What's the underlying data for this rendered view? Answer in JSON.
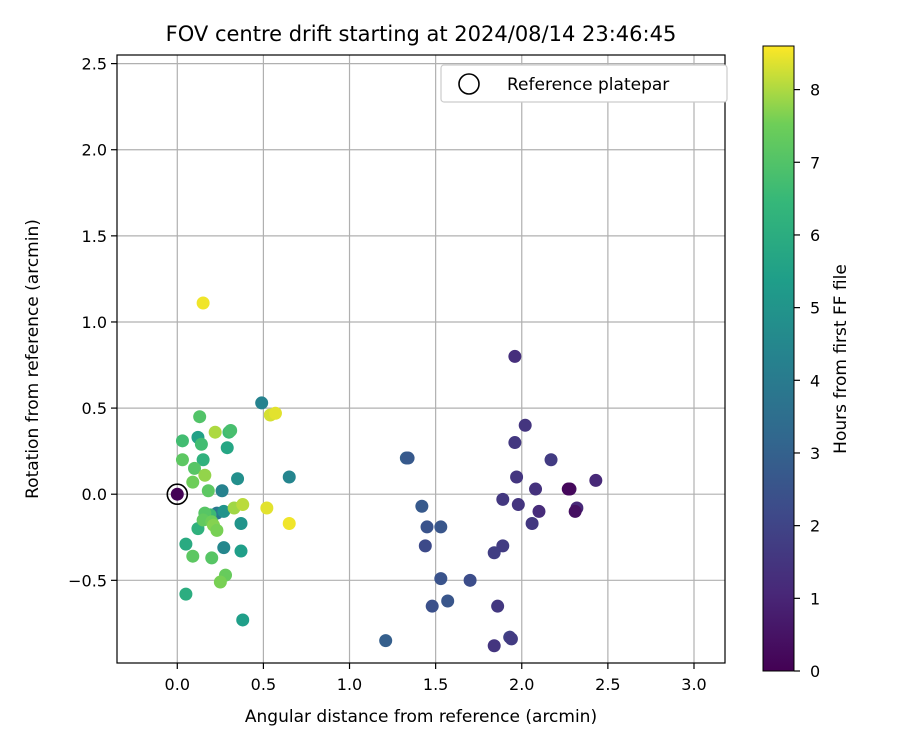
{
  "chart_data": {
    "type": "scatter",
    "title": "FOV centre drift starting at 2024/08/14 23:46:45",
    "xlabel": "Angular distance from reference (arcmin)",
    "ylabel": "Rotation from reference (arcmin)",
    "xlim": [
      -0.35,
      3.18
    ],
    "ylim": [
      -0.98,
      2.55
    ],
    "grid": true,
    "legend": {
      "position": "top-right",
      "entries": [
        {
          "label": "Reference platepar",
          "marker": "hollow-circle",
          "color": "#000000"
        }
      ]
    },
    "x_ticks": [
      0.0,
      0.5,
      1.0,
      1.5,
      2.0,
      2.5,
      3.0
    ],
    "x_tick_labels": [
      "0.0",
      "0.5",
      "1.0",
      "1.5",
      "2.0",
      "2.5",
      "3.0"
    ],
    "y_ticks": [
      -0.5,
      0.0,
      0.5,
      1.0,
      1.5,
      2.0,
      2.5
    ],
    "y_tick_labels": [
      "−0.5",
      "0.0",
      "0.5",
      "1.0",
      "1.5",
      "2.0",
      "2.5"
    ],
    "colorbar": {
      "label": "Hours from first FF file",
      "colormap": "viridis",
      "range": [
        0,
        8.6
      ],
      "ticks": [
        0,
        1,
        2,
        3,
        4,
        5,
        6,
        7,
        8
      ],
      "tick_labels": [
        "0",
        "1",
        "2",
        "3",
        "4",
        "5",
        "6",
        "7",
        "8"
      ]
    },
    "reference_point": {
      "x": 0.0,
      "y": 0.0
    },
    "series": [
      {
        "marker": "filled-circle",
        "color_by": "hours",
        "points": [
          {
            "x": 0.0,
            "y": 0.0,
            "c": 0.05
          },
          {
            "x": 1.96,
            "y": 0.8,
            "c": 1.3
          },
          {
            "x": 2.02,
            "y": 0.4,
            "c": 1.5
          },
          {
            "x": 1.96,
            "y": 0.3,
            "c": 1.6
          },
          {
            "x": 2.17,
            "y": 0.2,
            "c": 1.7
          },
          {
            "x": 1.97,
            "y": 0.1,
            "c": 1.5
          },
          {
            "x": 2.43,
            "y": 0.08,
            "c": 1.1
          },
          {
            "x": 2.28,
            "y": 0.03,
            "c": 0.3
          },
          {
            "x": 2.27,
            "y": 0.03,
            "c": 0.2
          },
          {
            "x": 2.08,
            "y": 0.03,
            "c": 1.4
          },
          {
            "x": 1.89,
            "y": -0.03,
            "c": 1.6
          },
          {
            "x": 1.98,
            "y": -0.06,
            "c": 1.5
          },
          {
            "x": 2.32,
            "y": -0.08,
            "c": 1.1
          },
          {
            "x": 2.31,
            "y": -0.1,
            "c": 0.4
          },
          {
            "x": 2.1,
            "y": -0.1,
            "c": 1.2
          },
          {
            "x": 2.06,
            "y": -0.17,
            "c": 1.6
          },
          {
            "x": 1.89,
            "y": -0.3,
            "c": 1.7
          },
          {
            "x": 1.84,
            "y": -0.34,
            "c": 1.8
          },
          {
            "x": 1.86,
            "y": -0.65,
            "c": 1.6
          },
          {
            "x": 1.93,
            "y": -0.83,
            "c": 1.9
          },
          {
            "x": 1.94,
            "y": -0.84,
            "c": 1.7
          },
          {
            "x": 1.84,
            "y": -0.88,
            "c": 1.5
          },
          {
            "x": 1.7,
            "y": -0.5,
            "c": 2.3
          },
          {
            "x": 1.57,
            "y": -0.62,
            "c": 2.6
          },
          {
            "x": 1.53,
            "y": -0.49,
            "c": 2.5
          },
          {
            "x": 1.48,
            "y": -0.65,
            "c": 2.4
          },
          {
            "x": 1.44,
            "y": -0.3,
            "c": 2.2
          },
          {
            "x": 1.45,
            "y": -0.19,
            "c": 2.5
          },
          {
            "x": 1.53,
            "y": -0.19,
            "c": 2.6
          },
          {
            "x": 1.42,
            "y": -0.07,
            "c": 2.7
          },
          {
            "x": 1.33,
            "y": 0.21,
            "c": 2.9
          },
          {
            "x": 1.34,
            "y": 0.21,
            "c": 2.7
          },
          {
            "x": 1.21,
            "y": -0.85,
            "c": 2.9
          },
          {
            "x": 0.49,
            "y": 0.53,
            "c": 4.3
          },
          {
            "x": 0.65,
            "y": 0.1,
            "c": 4.4
          },
          {
            "x": 0.35,
            "y": 0.09,
            "c": 4.8
          },
          {
            "x": 0.26,
            "y": 0.02,
            "c": 4.3
          },
          {
            "x": 0.23,
            "y": -0.11,
            "c": 3.9
          },
          {
            "x": 0.27,
            "y": -0.1,
            "c": 5.0
          },
          {
            "x": 0.37,
            "y": -0.17,
            "c": 5.0
          },
          {
            "x": 0.27,
            "y": -0.31,
            "c": 4.5
          },
          {
            "x": 0.37,
            "y": -0.33,
            "c": 5.4
          },
          {
            "x": 0.38,
            "y": -0.73,
            "c": 5.4
          },
          {
            "x": 0.12,
            "y": 0.33,
            "c": 5.5
          },
          {
            "x": 0.15,
            "y": 0.2,
            "c": 6.2
          },
          {
            "x": 0.29,
            "y": 0.27,
            "c": 5.7
          },
          {
            "x": 0.3,
            "y": 0.36,
            "c": 6.6
          },
          {
            "x": 0.31,
            "y": 0.37,
            "c": 6.8
          },
          {
            "x": 0.13,
            "y": 0.45,
            "c": 7.0
          },
          {
            "x": 0.14,
            "y": 0.29,
            "c": 6.7
          },
          {
            "x": 0.03,
            "y": 0.31,
            "c": 6.7
          },
          {
            "x": 0.03,
            "y": 0.2,
            "c": 7.2
          },
          {
            "x": 0.1,
            "y": 0.15,
            "c": 7.1
          },
          {
            "x": 0.16,
            "y": 0.11,
            "c": 7.8
          },
          {
            "x": 0.09,
            "y": 0.07,
            "c": 7.5
          },
          {
            "x": 0.18,
            "y": 0.02,
            "c": 7.2
          },
          {
            "x": 0.05,
            "y": -0.29,
            "c": 5.9
          },
          {
            "x": 0.12,
            "y": -0.2,
            "c": 6.2
          },
          {
            "x": 0.19,
            "y": -0.12,
            "c": 6.6
          },
          {
            "x": 0.16,
            "y": -0.11,
            "c": 7.1
          },
          {
            "x": 0.15,
            "y": -0.15,
            "c": 7.3
          },
          {
            "x": 0.2,
            "y": -0.16,
            "c": 7.5
          },
          {
            "x": 0.21,
            "y": -0.18,
            "c": 7.7
          },
          {
            "x": 0.23,
            "y": -0.21,
            "c": 7.6
          },
          {
            "x": 0.33,
            "y": -0.08,
            "c": 7.9
          },
          {
            "x": 0.09,
            "y": -0.36,
            "c": 7.2
          },
          {
            "x": 0.2,
            "y": -0.37,
            "c": 7.1
          },
          {
            "x": 0.28,
            "y": -0.47,
            "c": 7.4
          },
          {
            "x": 0.25,
            "y": -0.51,
            "c": 7.6
          },
          {
            "x": 0.05,
            "y": -0.58,
            "c": 6.0
          },
          {
            "x": 0.22,
            "y": 0.36,
            "c": 8.0
          },
          {
            "x": 0.38,
            "y": -0.06,
            "c": 8.1
          },
          {
            "x": 0.15,
            "y": 1.11,
            "c": 8.5
          },
          {
            "x": 0.54,
            "y": 0.46,
            "c": 8.3
          },
          {
            "x": 0.57,
            "y": 0.47,
            "c": 8.4
          },
          {
            "x": 0.52,
            "y": -0.08,
            "c": 8.4
          },
          {
            "x": 0.65,
            "y": -0.17,
            "c": 8.5
          }
        ]
      }
    ]
  }
}
